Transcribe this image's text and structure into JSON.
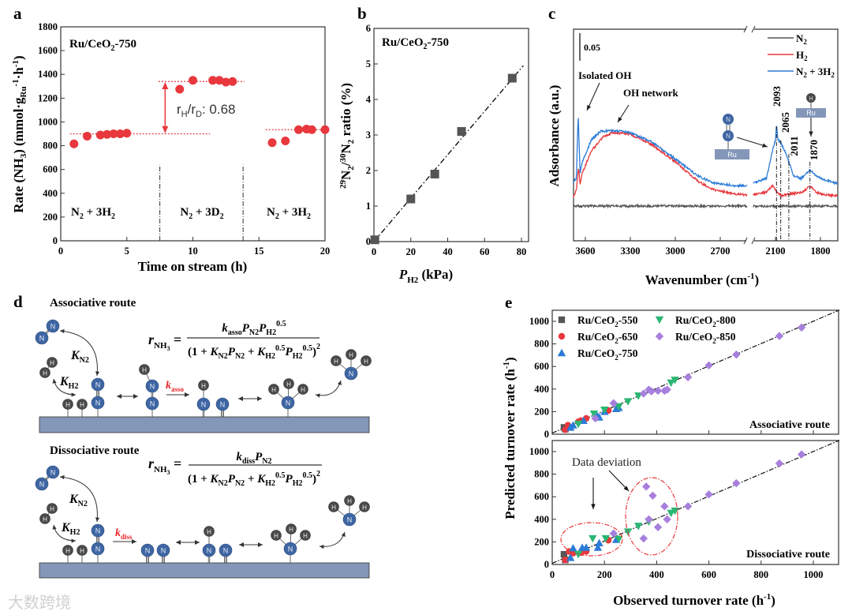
{
  "panel_labels": {
    "a": "a",
    "b": "b",
    "c": "c",
    "d": "d",
    "e": "e"
  },
  "colors": {
    "red": "#e8383d",
    "gray": "#555555",
    "blue": "#2b7bd6",
    "green": "#2bb673",
    "purple": "#a77fdc",
    "surface": "#8497b8",
    "atomN": "#3f66a3",
    "atomH": "#4a4a4a",
    "kred": "#e8262b"
  },
  "chart_data": [
    {
      "id": "a",
      "type": "scatter",
      "title": "Ru/CeO2-750",
      "xlabel": "Time on stream  (h)",
      "ylabel": "Rate (NH3)  (mmol·gRu-1·h-1)",
      "xlim": [
        0,
        20
      ],
      "ylim": [
        0,
        1800
      ],
      "xticks": [
        0,
        5,
        10,
        15,
        20
      ],
      "yticks": [
        0,
        200,
        400,
        600,
        800,
        1000,
        1200,
        1400,
        1600,
        1800
      ],
      "series": [
        {
          "name": "Rate",
          "points": [
            [
              1,
              815
            ],
            [
              2,
              880
            ],
            [
              3,
              890
            ],
            [
              3.5,
              895
            ],
            [
              4,
              900
            ],
            [
              4.5,
              900
            ],
            [
              5,
              905
            ],
            [
              9,
              1275
            ],
            [
              10,
              1350
            ],
            [
              11.5,
              1350
            ],
            [
              12,
              1350
            ],
            [
              12.5,
              1335
            ],
            [
              13,
              1340
            ],
            [
              16,
              825
            ],
            [
              17,
              840
            ],
            [
              18,
              935
            ],
            [
              18.6,
              940
            ],
            [
              19,
              935
            ],
            [
              20,
              935
            ]
          ]
        }
      ],
      "reference_lines": [
        {
          "y": 900,
          "x": [
            0.7,
            11.3
          ]
        },
        {
          "y": 1340,
          "x": [
            7.4,
            13.9
          ]
        },
        {
          "y": 935,
          "x": [
            15.5,
            20
          ]
        }
      ],
      "phase_boundaries": [
        7.5,
        13.8
      ],
      "regions": [
        "N2 + 3H2",
        "N2 + 3D2",
        "N2 + 3H2"
      ],
      "annotation": "rH/rD: 0.68",
      "annotation_parts": {
        "r1": "r",
        "s1": "H",
        "slash": "/r",
        "s2": "D",
        "val": ": 0.68"
      }
    },
    {
      "id": "b",
      "type": "scatter",
      "title": "Ru/CeO2-750",
      "xlabel": "PH2  (kPa)",
      "ylabel": "29N2/30N2 ratio (%)",
      "xlim": [
        0,
        84
      ],
      "ylim": [
        0,
        6
      ],
      "xticks": [
        0,
        20,
        40,
        60,
        80
      ],
      "yticks": [
        0,
        1,
        2,
        3,
        4,
        5,
        6
      ],
      "series": [
        {
          "name": "ratio",
          "points": [
            [
              0.5,
              0.05
            ],
            [
              20,
              1.2
            ],
            [
              33,
              1.9
            ],
            [
              47.5,
              3.1
            ],
            [
              75,
              4.6
            ]
          ]
        }
      ],
      "fit_line": [
        [
          0,
          0
        ],
        [
          81,
          4.95
        ]
      ]
    },
    {
      "id": "c",
      "type": "line",
      "xlabel": "Wavenumber  (cm-1)",
      "ylabel": "Adsorbance  (a.u.)",
      "x_segments": [
        [
          3680,
          2520
        ],
        [
          2250,
          1685
        ]
      ],
      "xticks": [
        3600,
        3300,
        3000,
        2700,
        2100,
        1800
      ],
      "scale_bar": "0.05",
      "series": [
        {
          "name": "N2",
          "color": "#555555",
          "left": [
            [
              3680,
              0
            ],
            [
              2520,
              0
            ]
          ],
          "right": [
            [
              2250,
              0
            ],
            [
              1685,
              0
            ]
          ]
        },
        {
          "name": "H2",
          "color": "#e8383d",
          "left": [
            [
              3680,
              0.016
            ],
            [
              3660,
              0.03
            ],
            [
              3645,
              0.07
            ],
            [
              3635,
              0.04
            ],
            [
              3620,
              0.06
            ],
            [
              3560,
              0.1
            ],
            [
              3480,
              0.125
            ],
            [
              3420,
              0.133
            ],
            [
              3300,
              0.13
            ],
            [
              3150,
              0.11
            ],
            [
              3000,
              0.08
            ],
            [
              2850,
              0.045
            ],
            [
              2750,
              0.03
            ],
            [
              2600,
              0.022
            ],
            [
              2520,
              0.02
            ]
          ],
          "right": [
            [
              2250,
              0.02
            ],
            [
              2160,
              0.025
            ],
            [
              2120,
              0.037
            ],
            [
              2090,
              0.025
            ],
            [
              2060,
              0.019
            ],
            [
              2000,
              0.022
            ],
            [
              1920,
              0.025
            ],
            [
              1870,
              0.037
            ],
            [
              1830,
              0.025
            ],
            [
              1760,
              0.02
            ],
            [
              1685,
              0.019
            ]
          ]
        },
        {
          "name": "N2 + 3H2",
          "color": "#2b7bd6",
          "left": [
            [
              3680,
              0.044
            ],
            [
              3660,
              0.05
            ],
            [
              3648,
              0.166
            ],
            [
              3635,
              0.06
            ],
            [
              3620,
              0.08
            ],
            [
              3560,
              0.12
            ],
            [
              3500,
              0.135
            ],
            [
              3420,
              0.137
            ],
            [
              3300,
              0.133
            ],
            [
              3150,
              0.115
            ],
            [
              3000,
              0.085
            ],
            [
              2850,
              0.055
            ],
            [
              2750,
              0.042
            ],
            [
              2600,
              0.037
            ],
            [
              2520,
              0.037
            ]
          ],
          "right": [
            [
              2250,
              0.041
            ],
            [
              2160,
              0.05
            ],
            [
              2120,
              0.1
            ],
            [
              2100,
              0.12
            ],
            [
              2093,
              0.149
            ],
            [
              2085,
              0.12
            ],
            [
              2065,
              0.115
            ],
            [
              2030,
              0.095
            ],
            [
              2011,
              0.08
            ],
            [
              1980,
              0.055
            ],
            [
              1930,
              0.05
            ],
            [
              1890,
              0.06
            ],
            [
              1870,
              0.066
            ],
            [
              1840,
              0.058
            ],
            [
              1800,
              0.05
            ],
            [
              1740,
              0.045
            ],
            [
              1685,
              0.04
            ]
          ]
        }
      ],
      "legend": [
        "N2",
        "H2",
        "N2 + 3H2"
      ],
      "legend_position": "top-right",
      "peak_labels": [
        "2093",
        "2065",
        "2011",
        "1870"
      ],
      "annotations": {
        "isolated_oh": "Isolated OH",
        "oh_network": "OH network",
        "ru": "Ru",
        "n": "N",
        "h": "H"
      }
    },
    {
      "id": "e",
      "type": "scatter",
      "xlabel": "Observed turnover rate  (h-1)",
      "ylabel": "Predicted turnover rate  (h-1)",
      "xlim": [
        0,
        1100
      ],
      "ylim": [
        0,
        1100
      ],
      "xticks": [
        0,
        200,
        400,
        600,
        800,
        1000
      ],
      "yticks": [
        0,
        200,
        400,
        600,
        800,
        1000
      ],
      "legend": [
        "Ru/CeO2-550",
        "Ru/CeO2-650",
        "Ru/CeO2-750",
        "Ru/CeO2-800",
        "Ru/CeO2-850"
      ],
      "subplots": [
        {
          "name": "Associative route",
          "series": [
            {
              "name": "Ru/CeO2-550",
              "marker": "square",
              "color": "#555555",
              "points": [
                [
                  45,
                  60
                ],
                [
                  50,
                  45
                ]
              ]
            },
            {
              "name": "Ru/CeO2-650",
              "marker": "circle",
              "color": "#e8383d",
              "points": [
                [
                  50,
                  40
                ],
                [
                  60,
                  80
                ],
                [
                  100,
                  110
                ],
                [
                  110,
                  120
                ],
                [
                  130,
                  140
                ],
                [
                  215,
                  210
                ]
              ]
            },
            {
              "name": "Ru/CeO2-750",
              "marker": "triangle-up",
              "color": "#2b7bd6",
              "points": [
                [
                  70,
                  60
                ],
                [
                  80,
                  80
                ],
                [
                  120,
                  120
                ],
                [
                  170,
                  170
                ],
                [
                  180,
                  150
                ],
                [
                  200,
                  200
                ],
                [
                  245,
                  225
                ],
                [
                  255,
                  235
                ]
              ]
            },
            {
              "name": "Ru/CeO2-800",
              "marker": "triangle-down",
              "color": "#2bb673",
              "points": [
                [
                  100,
                  90
                ],
                [
                  160,
                  180
                ],
                [
                  200,
                  215
                ],
                [
                  255,
                  245
                ],
                [
                  290,
                  290
                ],
                [
                  330,
                  340
                ],
                [
                  455,
                  455
                ],
                [
                  470,
                  480
                ]
              ]
            },
            {
              "name": "Ru/CeO2-850",
              "marker": "diamond",
              "color": "#a77fdc",
              "points": [
                [
                  165,
                  140
                ],
                [
                  235,
                  275
                ],
                [
                  350,
                  360
                ],
                [
                  370,
                  395
                ],
                [
                  380,
                  380
                ],
                [
                  405,
                  385
                ],
                [
                  430,
                  385
                ],
                [
                  440,
                  395
                ],
                [
                  520,
                  505
                ],
                [
                  600,
                  610
                ],
                [
                  705,
                  705
                ],
                [
                  870,
                  870
                ],
                [
                  955,
                  945
                ]
              ]
            }
          ]
        },
        {
          "name": "Dissociative route",
          "annotation": "Data deviation",
          "series": [
            {
              "name": "Ru/CeO2-550",
              "marker": "square",
              "color": "#555555",
              "points": [
                [
                  45,
                  90
                ],
                [
                  50,
                  40
                ]
              ]
            },
            {
              "name": "Ru/CeO2-650",
              "marker": "circle",
              "color": "#e8383d",
              "points": [
                [
                  50,
                  40
                ],
                [
                  65,
                  115
                ],
                [
                  80,
                  100
                ],
                [
                  110,
                  105
                ],
                [
                  130,
                  115
                ],
                [
                  215,
                  215
                ]
              ]
            },
            {
              "name": "Ru/CeO2-750",
              "marker": "triangle-up",
              "color": "#2b7bd6",
              "points": [
                [
                  70,
                  60
                ],
                [
                  80,
                  145
                ],
                [
                  115,
                  150
                ],
                [
                  130,
                  150
                ],
                [
                  175,
                  150
                ],
                [
                  180,
                  190
                ],
                [
                  245,
                  220
                ]
              ]
            },
            {
              "name": "Ru/CeO2-800",
              "marker": "triangle-down",
              "color": "#2bb673",
              "points": [
                [
                  100,
                  90
                ],
                [
                  155,
                  230
                ],
                [
                  205,
                  230
                ],
                [
                  255,
                  225
                ],
                [
                  290,
                  290
                ],
                [
                  330,
                  340
                ],
                [
                  370,
                  380
                ],
                [
                  455,
                  455
                ],
                [
                  470,
                  475
                ]
              ]
            },
            {
              "name": "Ru/CeO2-850",
              "marker": "diamond",
              "color": "#a77fdc",
              "points": [
                [
                  235,
                  275
                ],
                [
                  350,
                  230
                ],
                [
                  360,
                  690
                ],
                [
                  370,
                  400
                ],
                [
                  385,
                  610
                ],
                [
                  405,
                  330
                ],
                [
                  430,
                  515
                ],
                [
                  440,
                  400
                ],
                [
                  520,
                  515
                ],
                [
                  600,
                  620
                ],
                [
                  705,
                  720
                ],
                [
                  870,
                  895
                ],
                [
                  955,
                  975
                ]
              ]
            }
          ]
        }
      ]
    }
  ],
  "panel_d": {
    "associative_title": "Associative route",
    "dissociative_title": "Dissociative route",
    "K": "K",
    "k": "k",
    "N2": "N",
    "sub2": "2",
    "H2": "H",
    "k_asso_sub": "asso",
    "k_diss_sub": "diss",
    "atom_N": "N",
    "atom_H": "H",
    "eq": {
      "r": "r",
      "r_sub": "NH",
      "r_sub3": "3",
      "equals": "=",
      "P": "P",
      "exp": "0.5",
      "open": "(1 + ",
      "plus": " + ",
      "close": ")",
      "sq": "2"
    }
  },
  "watermark": "大数跨境"
}
